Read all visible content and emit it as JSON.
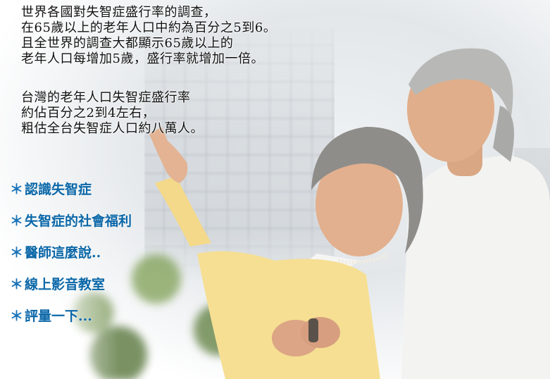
{
  "intro": {
    "paragraph1": [
      "世界各國對失智症盛行率的調查，",
      "在65歲以上的老年人口中約為百分之5到6。",
      "且全世界的調查大都顯示65歲以上的",
      "老年人口每增加5歲，盛行率就增加一倍。"
    ],
    "paragraph2": [
      "台灣的老年人口失智症盛行率",
      "約佔百分之2到4左右，",
      "粗估全台失智症人口約八萬人。"
    ]
  },
  "menu": {
    "bullet": "＊",
    "items": [
      {
        "label": "認識失智症"
      },
      {
        "label": "失智症的社會福利"
      },
      {
        "label": "醫師這麼說.."
      },
      {
        "label": "線上影音教室"
      },
      {
        "label": "評量一下..."
      }
    ]
  },
  "colors": {
    "menu_text": "#0a67a8",
    "body_text": "#111111"
  },
  "icons": [
    "elderly-couple-photo"
  ]
}
